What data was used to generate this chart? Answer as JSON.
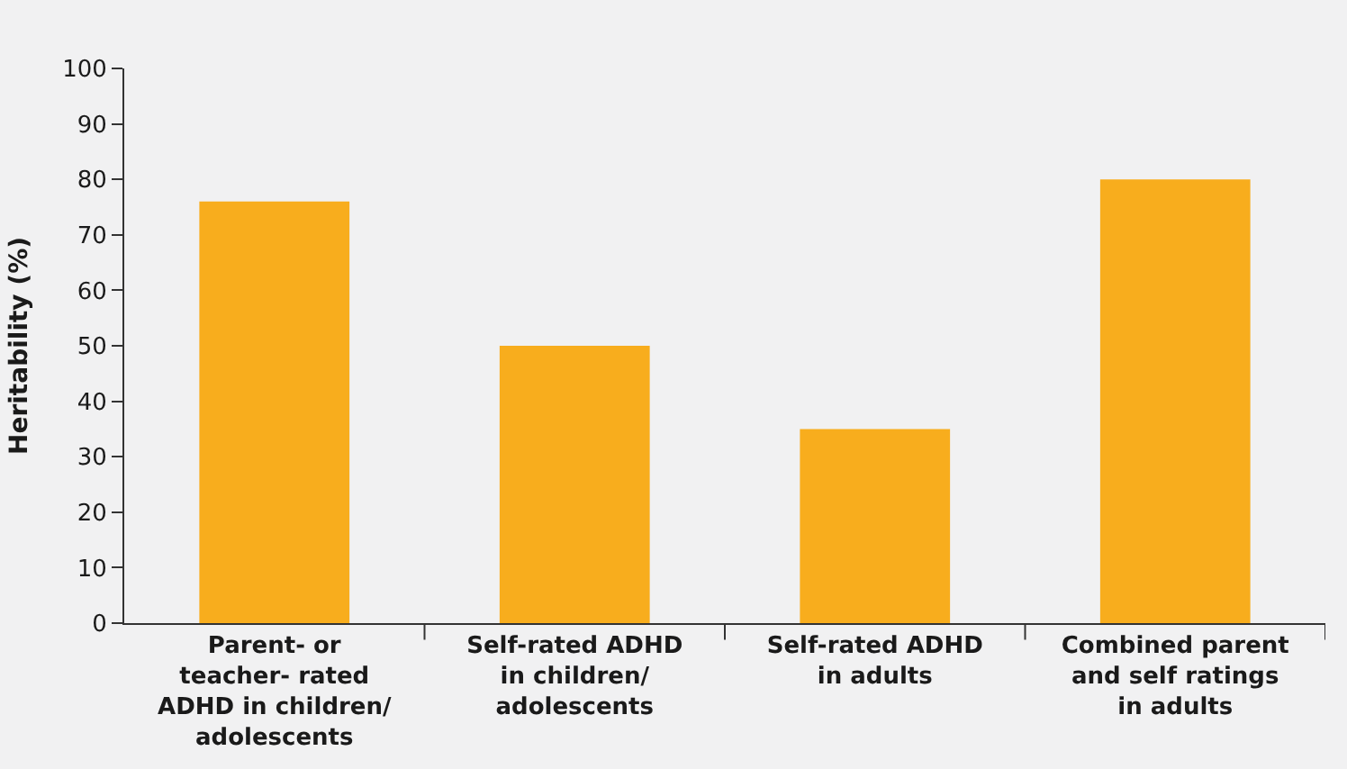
{
  "chart_data": {
    "type": "bar",
    "ylabel": "Heritability (%)",
    "categories": [
      "Parent- or\nteacher- rated\nADHD in children/\nadolescents",
      "Self-rated ADHD\nin children/\nadolescents",
      "Self-rated ADHD\nin adults",
      "Combined parent\nand self ratings\nin adults"
    ],
    "values": [
      76,
      50,
      35,
      80
    ],
    "color": "#f8ad1d",
    "ylim": [
      0,
      100
    ],
    "yticks": [
      0,
      10,
      20,
      30,
      40,
      50,
      60,
      70,
      80,
      90,
      100
    ],
    "grid": false
  }
}
